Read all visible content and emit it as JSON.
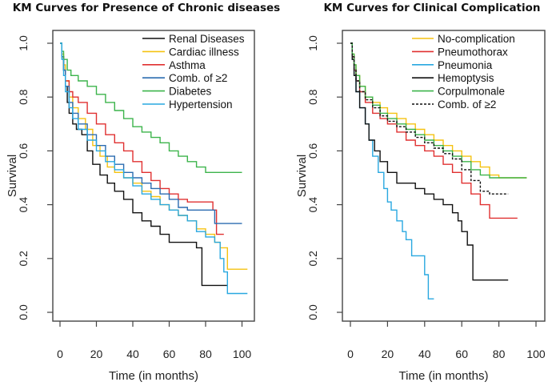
{
  "chart_data": [
    {
      "type": "line",
      "title": "KM Curves for Presence of Chronic diseases",
      "xlabel": "Time (in months)",
      "ylabel": "Survival",
      "xlim": [
        0,
        105
      ],
      "ylim": [
        0,
        1
      ],
      "xticks": [
        "0",
        "20",
        "40",
        "60",
        "80",
        "100"
      ],
      "yticks": [
        "0.0",
        "0.2",
        "0.4",
        "0.6",
        "0.8",
        "1.0"
      ],
      "legend_position": "top-right",
      "series": [
        {
          "name": "Renal Diseases",
          "color": "#111111",
          "dash": false,
          "x": [
            0,
            1,
            2,
            3,
            4,
            5,
            7,
            9,
            12,
            15,
            18,
            22,
            26,
            30,
            35,
            40,
            45,
            50,
            55,
            60,
            65,
            70,
            75,
            78,
            80,
            85,
            90,
            92
          ],
          "y": [
            1.0,
            0.95,
            0.9,
            0.84,
            0.78,
            0.74,
            0.7,
            0.68,
            0.66,
            0.6,
            0.55,
            0.51,
            0.48,
            0.45,
            0.42,
            0.37,
            0.34,
            0.32,
            0.29,
            0.26,
            0.26,
            0.26,
            0.24,
            0.1,
            0.1,
            0.1,
            0.1,
            0.1
          ]
        },
        {
          "name": "Cardiac illness",
          "color": "#f5c211",
          "dash": false,
          "x": [
            0,
            1,
            2,
            3,
            5,
            7,
            10,
            14,
            18,
            22,
            26,
            30,
            35,
            40,
            45,
            50,
            55,
            60,
            65,
            70,
            75,
            80,
            85,
            88,
            92,
            97,
            100,
            103
          ],
          "y": [
            1.0,
            0.96,
            0.92,
            0.86,
            0.8,
            0.76,
            0.72,
            0.68,
            0.62,
            0.58,
            0.54,
            0.52,
            0.5,
            0.48,
            0.45,
            0.43,
            0.4,
            0.38,
            0.36,
            0.34,
            0.31,
            0.29,
            0.26,
            0.24,
            0.16,
            0.16,
            0.16,
            0.16
          ]
        },
        {
          "name": "Asthma",
          "color": "#e03030",
          "dash": false,
          "x": [
            0,
            1,
            2,
            3,
            5,
            7,
            10,
            15,
            20,
            25,
            30,
            35,
            40,
            45,
            50,
            55,
            60,
            65,
            70,
            75,
            80,
            84,
            86,
            89,
            90
          ],
          "y": [
            1.0,
            0.95,
            0.9,
            0.86,
            0.82,
            0.8,
            0.78,
            0.74,
            0.7,
            0.66,
            0.63,
            0.6,
            0.56,
            0.52,
            0.49,
            0.46,
            0.44,
            0.42,
            0.41,
            0.41,
            0.41,
            0.38,
            0.29,
            0.29,
            0.29
          ]
        },
        {
          "name": "Comb. of ≥2",
          "color": "#2b6cb0",
          "dash": false,
          "x": [
            0,
            1,
            2,
            3,
            5,
            7,
            10,
            15,
            20,
            25,
            30,
            35,
            40,
            45,
            50,
            55,
            60,
            65,
            70,
            75,
            80,
            85,
            90,
            95,
            100
          ],
          "y": [
            1.0,
            0.95,
            0.9,
            0.84,
            0.78,
            0.74,
            0.7,
            0.66,
            0.62,
            0.58,
            0.55,
            0.52,
            0.5,
            0.48,
            0.46,
            0.44,
            0.42,
            0.39,
            0.38,
            0.38,
            0.38,
            0.33,
            0.33,
            0.33,
            0.33
          ]
        },
        {
          "name": "Diabetes",
          "color": "#3cb44b",
          "dash": false,
          "x": [
            0,
            1,
            2,
            4,
            6,
            10,
            15,
            20,
            25,
            30,
            35,
            40,
            45,
            50,
            55,
            60,
            65,
            70,
            75,
            80,
            85,
            90,
            95,
            100
          ],
          "y": [
            1.0,
            0.97,
            0.94,
            0.9,
            0.88,
            0.86,
            0.84,
            0.81,
            0.78,
            0.75,
            0.72,
            0.69,
            0.67,
            0.65,
            0.63,
            0.6,
            0.58,
            0.56,
            0.54,
            0.52,
            0.52,
            0.52,
            0.52,
            0.52
          ]
        },
        {
          "name": "Hypertension",
          "color": "#29a8e0",
          "dash": false,
          "x": [
            0,
            1,
            2,
            3,
            5,
            7,
            10,
            15,
            20,
            25,
            30,
            35,
            40,
            45,
            50,
            55,
            60,
            65,
            70,
            75,
            80,
            85,
            88,
            90,
            92,
            96,
            100,
            103
          ],
          "y": [
            1.0,
            0.94,
            0.88,
            0.82,
            0.76,
            0.72,
            0.68,
            0.64,
            0.6,
            0.56,
            0.53,
            0.5,
            0.47,
            0.44,
            0.42,
            0.4,
            0.38,
            0.36,
            0.34,
            0.3,
            0.28,
            0.26,
            0.2,
            0.15,
            0.07,
            0.07,
            0.07,
            0.07
          ]
        }
      ]
    },
    {
      "type": "line",
      "title": "KM Curves for Clinical Complication",
      "xlabel": "Time (in months)",
      "ylabel": "Survival",
      "xlim": [
        0,
        105
      ],
      "ylim": [
        0,
        1
      ],
      "xticks": [
        "0",
        "20",
        "40",
        "60",
        "80",
        "100"
      ],
      "yticks": [
        "0.0",
        "0.2",
        "0.4",
        "0.6",
        "0.8",
        "1.0"
      ],
      "legend_position": "top-right",
      "series": [
        {
          "name": "No-complication",
          "color": "#f5c211",
          "dash": false,
          "x": [
            0,
            1,
            2,
            3,
            5,
            8,
            12,
            16,
            20,
            25,
            30,
            35,
            40,
            45,
            50,
            55,
            60,
            65,
            70,
            75,
            80,
            85,
            90,
            95
          ],
          "y": [
            1.0,
            0.96,
            0.92,
            0.88,
            0.84,
            0.8,
            0.78,
            0.76,
            0.74,
            0.72,
            0.7,
            0.68,
            0.66,
            0.64,
            0.62,
            0.6,
            0.58,
            0.56,
            0.54,
            0.51,
            0.5,
            0.5,
            0.5,
            0.5
          ]
        },
        {
          "name": "Pneumothorax",
          "color": "#e03030",
          "dash": false,
          "x": [
            0,
            1,
            2,
            3,
            5,
            8,
            12,
            16,
            20,
            25,
            30,
            35,
            40,
            45,
            50,
            55,
            60,
            65,
            70,
            75,
            80,
            85,
            90
          ],
          "y": [
            1.0,
            0.95,
            0.9,
            0.86,
            0.82,
            0.78,
            0.74,
            0.72,
            0.7,
            0.67,
            0.64,
            0.62,
            0.6,
            0.58,
            0.55,
            0.52,
            0.48,
            0.44,
            0.4,
            0.35,
            0.35,
            0.35,
            0.35
          ]
        },
        {
          "name": "Pneumonia",
          "color": "#29a8e0",
          "dash": false,
          "x": [
            0,
            1,
            2,
            3,
            5,
            8,
            10,
            12,
            15,
            18,
            20,
            22,
            25,
            28,
            30,
            33,
            36,
            38,
            40,
            42,
            44,
            45
          ],
          "y": [
            1.0,
            0.94,
            0.88,
            0.82,
            0.76,
            0.7,
            0.64,
            0.58,
            0.52,
            0.46,
            0.41,
            0.38,
            0.34,
            0.3,
            0.27,
            0.21,
            0.21,
            0.21,
            0.14,
            0.05,
            0.05,
            0.05
          ]
        },
        {
          "name": "Hemoptysis",
          "color": "#111111",
          "dash": false,
          "x": [
            0,
            1,
            2,
            3,
            5,
            8,
            10,
            13,
            16,
            20,
            25,
            30,
            35,
            40,
            45,
            50,
            55,
            58,
            60,
            63,
            66,
            68,
            70,
            75,
            80,
            85
          ],
          "y": [
            1.0,
            0.94,
            0.88,
            0.82,
            0.76,
            0.7,
            0.64,
            0.6,
            0.56,
            0.52,
            0.48,
            0.48,
            0.46,
            0.44,
            0.42,
            0.4,
            0.37,
            0.34,
            0.3,
            0.25,
            0.12,
            0.12,
            0.12,
            0.12,
            0.12,
            0.12
          ]
        },
        {
          "name": "Corpulmonale",
          "color": "#3cb44b",
          "dash": false,
          "x": [
            0,
            1,
            2,
            3,
            5,
            8,
            12,
            16,
            20,
            25,
            30,
            35,
            40,
            45,
            50,
            55,
            60,
            65,
            70,
            75,
            80,
            85,
            90,
            95
          ],
          "y": [
            1.0,
            0.96,
            0.92,
            0.88,
            0.84,
            0.8,
            0.77,
            0.74,
            0.72,
            0.7,
            0.68,
            0.66,
            0.64,
            0.62,
            0.6,
            0.58,
            0.56,
            0.53,
            0.51,
            0.5,
            0.5,
            0.5,
            0.5,
            0.5
          ]
        },
        {
          "name": "Comb. of  ≥2",
          "color": "#111111",
          "dash": true,
          "x": [
            0,
            1,
            2,
            3,
            5,
            8,
            12,
            16,
            20,
            25,
            30,
            35,
            40,
            45,
            50,
            55,
            60,
            65,
            70,
            75,
            80,
            85
          ],
          "y": [
            1.0,
            0.95,
            0.9,
            0.86,
            0.82,
            0.79,
            0.76,
            0.73,
            0.71,
            0.69,
            0.67,
            0.65,
            0.63,
            0.61,
            0.59,
            0.57,
            0.53,
            0.49,
            0.45,
            0.44,
            0.44,
            0.44
          ]
        }
      ]
    }
  ]
}
